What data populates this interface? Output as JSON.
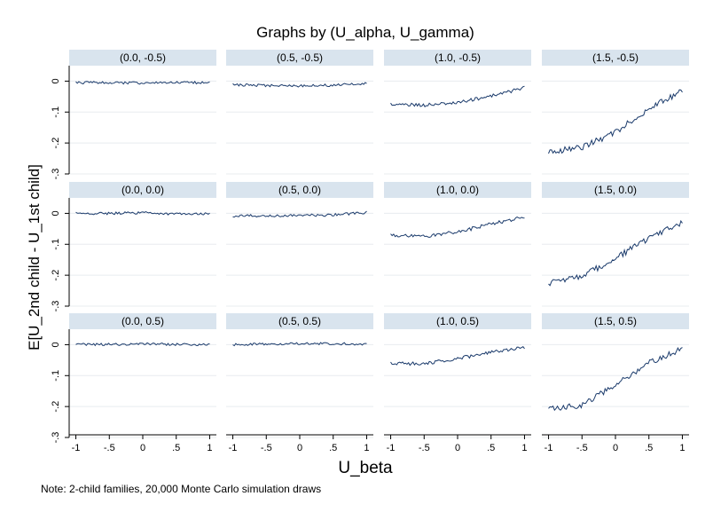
{
  "chart_data": {
    "type": "line",
    "title": "Graphs by (U_alpha, U_gamma)",
    "xlabel": "U_beta",
    "ylabel": "E[U_2nd child - U_1st child]",
    "note": "Note: 2-child families, 20,000 Monte Carlo simulation draws",
    "xlim": [
      -1.1,
      1.1
    ],
    "ylim": [
      -0.3,
      0.05
    ],
    "x_ticks": [
      {
        "value": -1,
        "label": "-1"
      },
      {
        "value": -0.5,
        "label": "-.5"
      },
      {
        "value": 0,
        "label": "0"
      },
      {
        "value": 0.5,
        "label": ".5"
      },
      {
        "value": 1,
        "label": "1"
      }
    ],
    "y_ticks": [
      {
        "value": 0,
        "label": "0"
      },
      {
        "value": -0.1,
        "label": "-.1"
      },
      {
        "value": -0.2,
        "label": "-.2"
      },
      {
        "value": -0.3,
        "label": "-.3"
      }
    ],
    "grid": true,
    "line_color": "#1a3a6b",
    "header_color": "#d9e4ee",
    "panels": [
      {
        "label": "(0.0, -0.5)",
        "row": 0,
        "col": 0,
        "x": [
          -1,
          -0.5,
          0,
          0.5,
          1
        ],
        "y": [
          -0.005,
          -0.005,
          -0.006,
          -0.005,
          -0.005
        ]
      },
      {
        "label": "(0.5, -0.5)",
        "row": 0,
        "col": 1,
        "x": [
          -1,
          -0.5,
          0,
          0.5,
          1
        ],
        "y": [
          -0.012,
          -0.014,
          -0.015,
          -0.013,
          -0.008
        ]
      },
      {
        "label": "(1.0, -0.5)",
        "row": 0,
        "col": 2,
        "x": [
          -1,
          -0.5,
          0,
          0.5,
          1
        ],
        "y": [
          -0.075,
          -0.078,
          -0.07,
          -0.048,
          -0.022
        ]
      },
      {
        "label": "(1.5, -0.5)",
        "row": 0,
        "col": 3,
        "x": [
          -1,
          -0.5,
          0,
          0.5,
          1
        ],
        "y": [
          -0.228,
          -0.215,
          -0.165,
          -0.09,
          -0.03
        ]
      },
      {
        "label": "(0.0, 0.0)",
        "row": 1,
        "col": 0,
        "x": [
          -1,
          -0.5,
          0,
          0.5,
          1
        ],
        "y": [
          0.0,
          0.0,
          0.002,
          -0.002,
          -0.002
        ]
      },
      {
        "label": "(0.5, 0.0)",
        "row": 1,
        "col": 1,
        "x": [
          -1,
          -0.5,
          0,
          0.5,
          1
        ],
        "y": [
          -0.008,
          -0.008,
          -0.007,
          -0.005,
          0.003
        ]
      },
      {
        "label": "(1.0, 0.0)",
        "row": 1,
        "col": 2,
        "x": [
          -1,
          -0.5,
          0,
          0.5,
          1
        ],
        "y": [
          -0.07,
          -0.075,
          -0.06,
          -0.035,
          -0.012
        ]
      },
      {
        "label": "(1.5, 0.0)",
        "row": 1,
        "col": 3,
        "x": [
          -1,
          -0.5,
          0,
          0.5,
          1
        ],
        "y": [
          -0.225,
          -0.205,
          -0.145,
          -0.08,
          -0.028
        ]
      },
      {
        "label": "(0.0, 0.5)",
        "row": 2,
        "col": 0,
        "x": [
          -1,
          -0.5,
          0,
          0.5,
          1
        ],
        "y": [
          0.001,
          0.001,
          0.002,
          0.001,
          -0.001
        ]
      },
      {
        "label": "(0.5, 0.5)",
        "row": 2,
        "col": 1,
        "x": [
          -1,
          -0.5,
          0,
          0.5,
          1
        ],
        "y": [
          0.0,
          0.002,
          0.003,
          0.003,
          0.002
        ]
      },
      {
        "label": "(1.0, 0.5)",
        "row": 2,
        "col": 2,
        "x": [
          -1,
          -0.5,
          0,
          0.5,
          1
        ],
        "y": [
          -0.06,
          -0.062,
          -0.045,
          -0.025,
          -0.008
        ]
      },
      {
        "label": "(1.5, 0.5)",
        "row": 2,
        "col": 3,
        "x": [
          -1,
          -0.5,
          0,
          0.5,
          1
        ],
        "y": [
          -0.21,
          -0.195,
          -0.13,
          -0.06,
          -0.012
        ]
      }
    ]
  }
}
